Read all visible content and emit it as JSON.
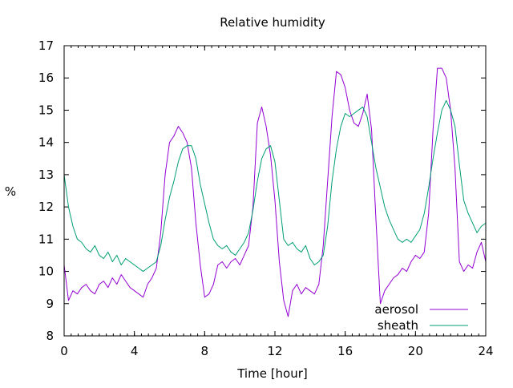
{
  "chart_data": {
    "type": "line",
    "title": "Relative humidity",
    "xlabel": "Time [hour]",
    "ylabel": "%",
    "xlim": [
      0,
      24
    ],
    "ylim": [
      8,
      17
    ],
    "x_ticks": [
      0,
      4,
      8,
      12,
      16,
      20,
      24
    ],
    "y_ticks": [
      8,
      9,
      10,
      11,
      12,
      13,
      14,
      15,
      16,
      17
    ],
    "grid": false,
    "legend_position": "bottom-right",
    "series": [
      {
        "name": "aerosol",
        "color": "#9400d3",
        "x": [
          0,
          0.25,
          0.5,
          0.75,
          1,
          1.25,
          1.5,
          1.75,
          2,
          2.25,
          2.5,
          2.75,
          3,
          3.25,
          3.5,
          3.75,
          4,
          4.25,
          4.5,
          4.75,
          5,
          5.25,
          5.5,
          5.75,
          6,
          6.25,
          6.5,
          6.75,
          7,
          7.25,
          7.5,
          7.75,
          8,
          8.25,
          8.5,
          8.75,
          9,
          9.25,
          9.5,
          9.75,
          10,
          10.25,
          10.5,
          10.75,
          11,
          11.25,
          11.5,
          11.75,
          12,
          12.25,
          12.5,
          12.75,
          13,
          13.25,
          13.5,
          13.75,
          14,
          14.25,
          14.5,
          14.75,
          15,
          15.25,
          15.5,
          15.75,
          16,
          16.25,
          16.5,
          16.75,
          17,
          17.25,
          17.5,
          17.75,
          18,
          18.25,
          18.5,
          18.75,
          19,
          19.25,
          19.5,
          19.75,
          20,
          20.25,
          20.5,
          20.75,
          21,
          21.25,
          21.5,
          21.75,
          22,
          22.25,
          22.5,
          22.75,
          23,
          23.25,
          23.5,
          23.75,
          24
        ],
        "y": [
          10.2,
          9.1,
          9.4,
          9.3,
          9.5,
          9.6,
          9.4,
          9.3,
          9.6,
          9.7,
          9.5,
          9.8,
          9.6,
          9.9,
          9.7,
          9.5,
          9.4,
          9.3,
          9.2,
          9.6,
          9.8,
          10.1,
          11.2,
          13.0,
          14.0,
          14.2,
          14.5,
          14.3,
          14.0,
          13.2,
          11.5,
          10.2,
          9.2,
          9.3,
          9.6,
          10.2,
          10.3,
          10.1,
          10.3,
          10.4,
          10.2,
          10.5,
          10.8,
          12.0,
          14.6,
          15.1,
          14.5,
          13.6,
          12.2,
          10.3,
          9.1,
          8.6,
          9.4,
          9.6,
          9.3,
          9.5,
          9.4,
          9.3,
          9.6,
          10.8,
          12.8,
          14.8,
          16.2,
          16.1,
          15.7,
          15.0,
          14.6,
          14.5,
          14.9,
          15.5,
          14.4,
          11.6,
          9.0,
          9.4,
          9.6,
          9.8,
          9.9,
          10.1,
          10.0,
          10.3,
          10.5,
          10.4,
          10.6,
          11.8,
          14.4,
          16.3,
          16.3,
          16.0,
          15.0,
          13.2,
          10.3,
          10.0,
          10.2,
          10.1,
          10.6,
          10.9,
          10.3
        ]
      },
      {
        "name": "sheath",
        "color": "#009e73",
        "x": [
          0,
          0.25,
          0.5,
          0.75,
          1,
          1.25,
          1.5,
          1.75,
          2,
          2.25,
          2.5,
          2.75,
          3,
          3.25,
          3.5,
          3.75,
          4,
          4.25,
          4.5,
          4.75,
          5,
          5.25,
          5.5,
          5.75,
          6,
          6.25,
          6.5,
          6.75,
          7,
          7.25,
          7.5,
          7.75,
          8,
          8.25,
          8.5,
          8.75,
          9,
          9.25,
          9.5,
          9.75,
          10,
          10.25,
          10.5,
          10.75,
          11,
          11.25,
          11.5,
          11.75,
          12,
          12.25,
          12.5,
          12.75,
          13,
          13.25,
          13.5,
          13.75,
          14,
          14.25,
          14.5,
          14.75,
          15,
          15.25,
          15.5,
          15.75,
          16,
          16.25,
          16.5,
          16.75,
          17,
          17.25,
          17.5,
          17.75,
          18,
          18.25,
          18.5,
          18.75,
          19,
          19.25,
          19.5,
          19.75,
          20,
          20.25,
          20.5,
          20.75,
          21,
          21.25,
          21.5,
          21.75,
          22,
          22.25,
          22.5,
          22.75,
          23,
          23.25,
          23.5,
          23.75,
          24
        ],
        "y": [
          13.0,
          12.0,
          11.4,
          11.0,
          10.9,
          10.7,
          10.6,
          10.8,
          10.5,
          10.4,
          10.6,
          10.3,
          10.5,
          10.2,
          10.4,
          10.3,
          10.2,
          10.1,
          10.0,
          10.1,
          10.2,
          10.3,
          10.8,
          11.6,
          12.3,
          12.8,
          13.4,
          13.8,
          13.9,
          13.9,
          13.5,
          12.7,
          12.1,
          11.5,
          11.0,
          10.8,
          10.7,
          10.8,
          10.6,
          10.5,
          10.7,
          10.9,
          11.2,
          11.9,
          12.8,
          13.5,
          13.8,
          13.9,
          13.4,
          12.2,
          11.0,
          10.8,
          10.9,
          10.7,
          10.6,
          10.8,
          10.4,
          10.2,
          10.3,
          10.5,
          11.4,
          12.8,
          13.8,
          14.5,
          14.9,
          14.8,
          14.9,
          15.0,
          15.1,
          14.8,
          14.0,
          13.2,
          12.6,
          12.0,
          11.6,
          11.3,
          11.0,
          10.9,
          11.0,
          10.9,
          11.1,
          11.3,
          11.8,
          12.6,
          13.5,
          14.3,
          15.0,
          15.3,
          15.0,
          14.5,
          13.3,
          12.2,
          11.8,
          11.5,
          11.2,
          11.4,
          11.5
        ]
      }
    ]
  }
}
